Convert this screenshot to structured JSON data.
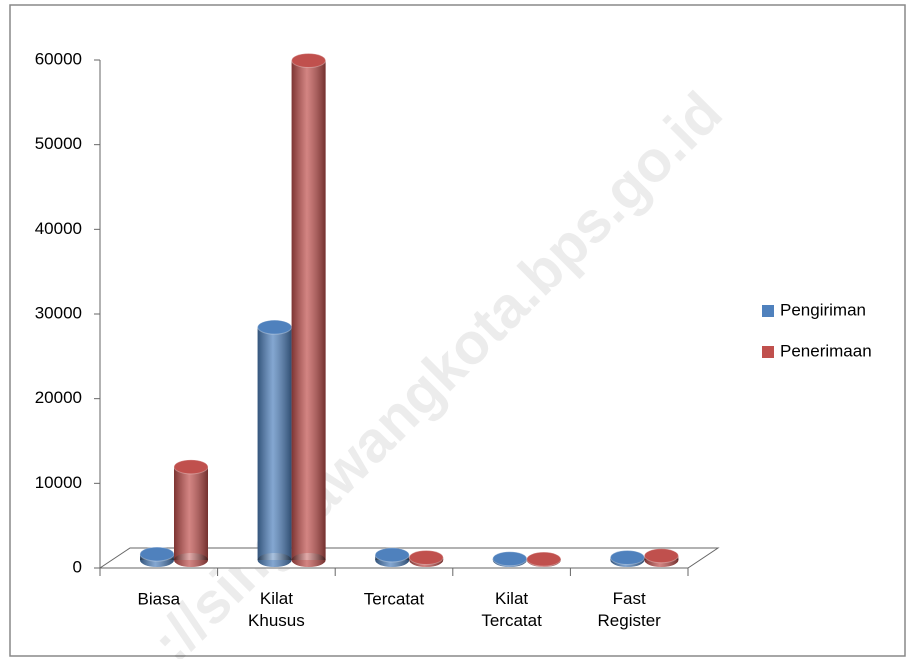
{
  "chart_data": {
    "type": "bar3d",
    "categories": [
      "Biasa",
      "Kilat Khusus",
      "Tercatat",
      "Kilat Tercatat",
      "Fast Register"
    ],
    "series": [
      {
        "name": "Pengiriman",
        "color": "#4f81bd",
        "values": [
          700,
          27500,
          600,
          150,
          300
        ]
      },
      {
        "name": "Penerimaan",
        "color": "#c0504d",
        "values": [
          11000,
          59000,
          300,
          100,
          500
        ]
      }
    ],
    "ylim": [
      0,
      60000
    ],
    "yticks": [
      0,
      10000,
      20000,
      30000,
      40000,
      50000,
      60000
    ],
    "legend": "right",
    "watermark": "://singkawangkota.bps.go.id"
  }
}
